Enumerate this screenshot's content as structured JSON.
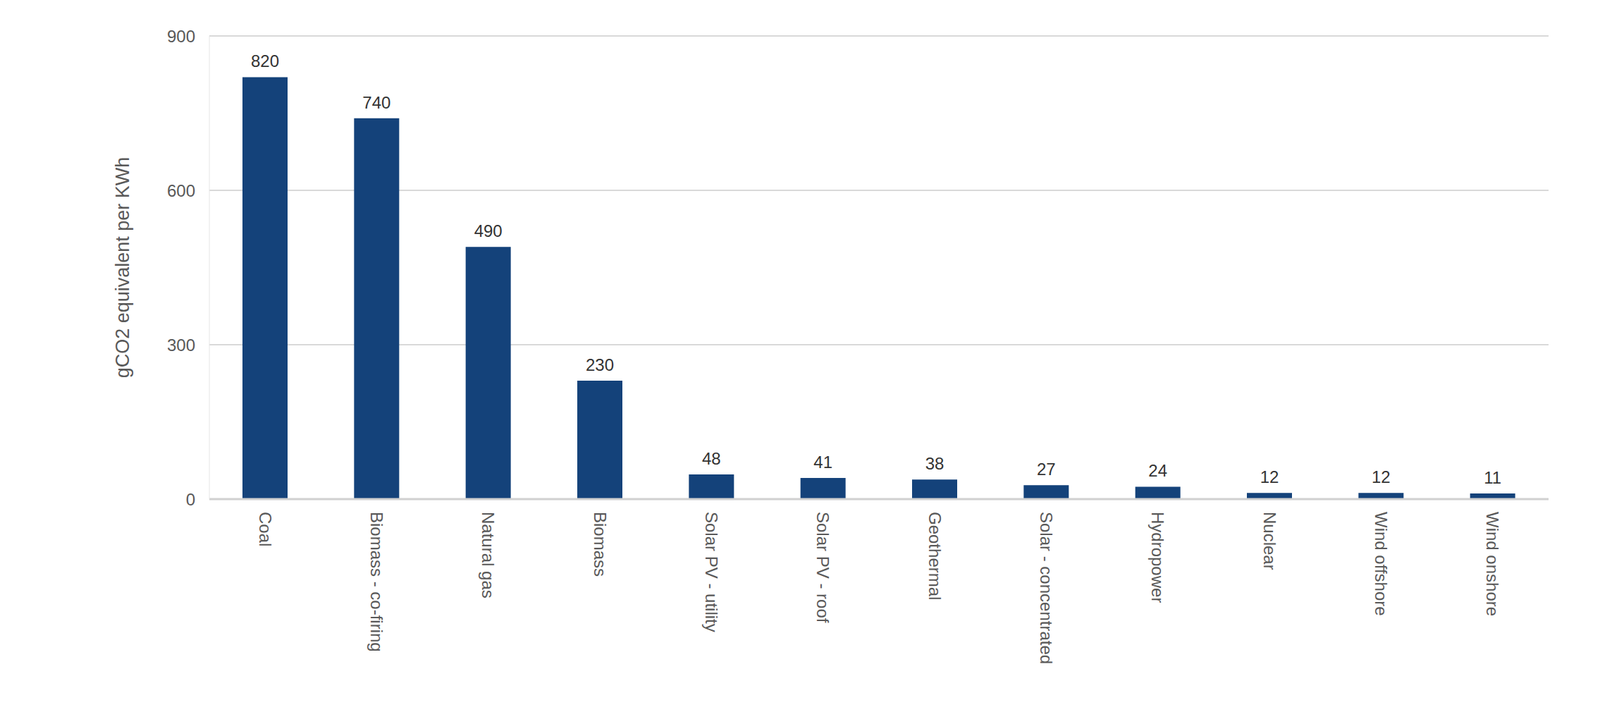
{
  "chart_data": {
    "type": "bar",
    "y_label": "gCO2 equivalent per KWh",
    "categories": [
      "Coal",
      "Biomass - co-firing",
      "Natural gas",
      "Biomass",
      "Solar PV - utility",
      "Solar PV - roof",
      "Geothermal",
      "Solar - concentrated",
      "Hydropower",
      "Nuclear",
      "Wind offshore",
      "Wind onshore"
    ],
    "values": [
      820,
      740,
      490,
      230,
      48,
      41,
      38,
      27,
      24,
      12,
      12,
      11
    ],
    "color": "#14427a",
    "ylim": [
      0,
      900
    ],
    "yticks": [
      0,
      300,
      600,
      900
    ],
    "grid": true,
    "data_labels": true
  }
}
